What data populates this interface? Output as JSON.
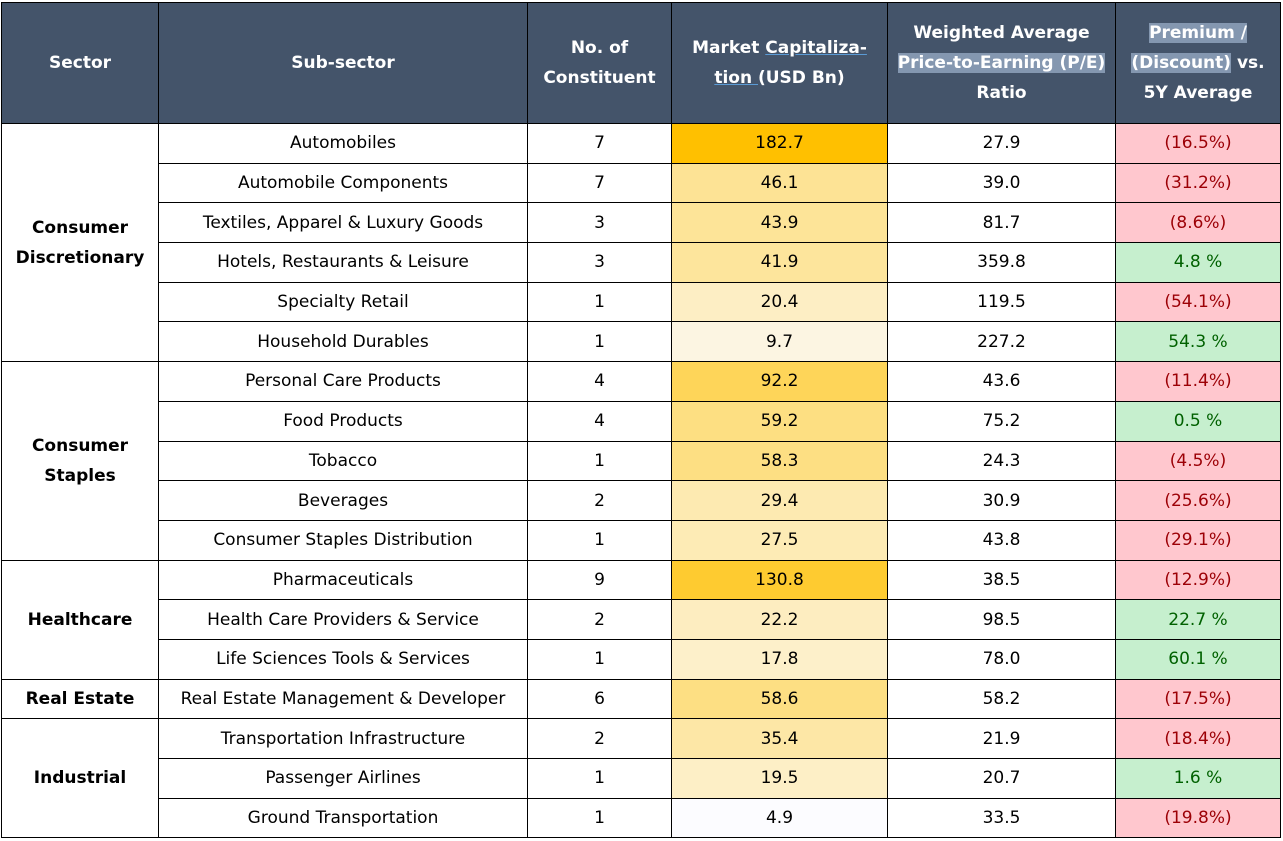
{
  "headers": {
    "sector": "Sector",
    "subsector": "Sub-sector",
    "constituents_l1": "No. of",
    "constituents_l2": "Constituent",
    "mcap_l1a": "Market ",
    "mcap_l1b": "Capitaliza-",
    "mcap_l2a": "tion ",
    "mcap_l2b": " (USD Bn)",
    "pe_l1": "Weighted Average",
    "pe_l2": "Price-to-Earning (P/E)",
    "pe_l3": "Ratio",
    "prem_l1": "Premium /",
    "prem_l2a": "(Discount)",
    "prem_l2b": " vs.",
    "prem_l3": "5Y Average"
  },
  "colors": {
    "header_bg": "#44546a",
    "mcap_max": "#ffc000",
    "mcap_min": "#fcfcff",
    "negative_bg": "#ffc7ce",
    "negative_text": "#9c0006",
    "positive_bg": "#c6efce",
    "positive_text": "#006100"
  },
  "groups": [
    {
      "sector_l1": "Consumer",
      "sector_l2": "Discretionary",
      "rows": [
        {
          "subsector": "Automobiles",
          "constituents": "7",
          "mcap": "182.7",
          "pe": "27.9",
          "premium": "(16.5%)",
          "sign": "neg"
        },
        {
          "subsector": "Automobile Components",
          "constituents": "7",
          "mcap": "46.1",
          "pe": "39.0",
          "premium": "(31.2%)",
          "sign": "neg"
        },
        {
          "subsector": "Textiles, Apparel & Luxury Goods",
          "constituents": "3",
          "mcap": "43.9",
          "pe": "81.7",
          "premium": "(8.6%)",
          "sign": "neg"
        },
        {
          "subsector": "Hotels, Restaurants & Leisure",
          "constituents": "3",
          "mcap": "41.9",
          "pe": "359.8",
          "premium": "4.8 %",
          "sign": "pos"
        },
        {
          "subsector": "Specialty Retail",
          "constituents": "1",
          "mcap": "20.4",
          "pe": "119.5",
          "premium": "(54.1%)",
          "sign": "neg"
        },
        {
          "subsector": "Household Durables",
          "constituents": "1",
          "mcap": "9.7",
          "pe": "227.2",
          "premium": "54.3 %",
          "sign": "pos"
        }
      ]
    },
    {
      "sector_l1": "Consumer",
      "sector_l2": "Staples",
      "rows": [
        {
          "subsector": "Personal Care Products",
          "constituents": "4",
          "mcap": "92.2",
          "pe": "43.6",
          "premium": "(11.4%)",
          "sign": "neg"
        },
        {
          "subsector": "Food Products",
          "constituents": "4",
          "mcap": "59.2",
          "pe": "75.2",
          "premium": "0.5 %",
          "sign": "pos"
        },
        {
          "subsector": "Tobacco",
          "constituents": "1",
          "mcap": "58.3",
          "pe": "24.3",
          "premium": "(4.5%)",
          "sign": "neg"
        },
        {
          "subsector": "Beverages",
          "constituents": "2",
          "mcap": "29.4",
          "pe": "30.9",
          "premium": "(25.6%)",
          "sign": "neg"
        },
        {
          "subsector": "Consumer Staples Distribution",
          "constituents": "1",
          "mcap": "27.5",
          "pe": "43.8",
          "premium": "(29.1%)",
          "sign": "neg"
        }
      ]
    },
    {
      "sector_l1": "Healthcare",
      "sector_l2": "",
      "rows": [
        {
          "subsector": "Pharmaceuticals",
          "constituents": "9",
          "mcap": "130.8",
          "pe": "38.5",
          "premium": "(12.9%)",
          "sign": "neg"
        },
        {
          "subsector": "Health Care Providers & Service",
          "constituents": "2",
          "mcap": "22.2",
          "pe": "98.5",
          "premium": "22.7 %",
          "sign": "pos"
        },
        {
          "subsector": "Life Sciences Tools & Services",
          "constituents": "1",
          "mcap": "17.8",
          "pe": "78.0",
          "premium": "60.1 %",
          "sign": "pos"
        }
      ]
    },
    {
      "sector_l1": "Real Estate",
      "sector_l2": "",
      "rows": [
        {
          "subsector": "Real Estate Management & Developer",
          "constituents": "6",
          "mcap": "58.6",
          "pe": "58.2",
          "premium": "(17.5%)",
          "sign": "neg"
        }
      ]
    },
    {
      "sector_l1": "Industrial",
      "sector_l2": "",
      "rows": [
        {
          "subsector": "Transportation Infrastructure",
          "constituents": "2",
          "mcap": "35.4",
          "pe": "21.9",
          "premium": "(18.4%)",
          "sign": "neg"
        },
        {
          "subsector": "Passenger Airlines",
          "constituents": "1",
          "mcap": "19.5",
          "pe": "20.7",
          "premium": "1.6 %",
          "sign": "pos"
        },
        {
          "subsector": "Ground Transportation",
          "constituents": "1",
          "mcap": "4.9",
          "pe": "33.5",
          "premium": "(19.8%)",
          "sign": "neg"
        }
      ]
    }
  ]
}
